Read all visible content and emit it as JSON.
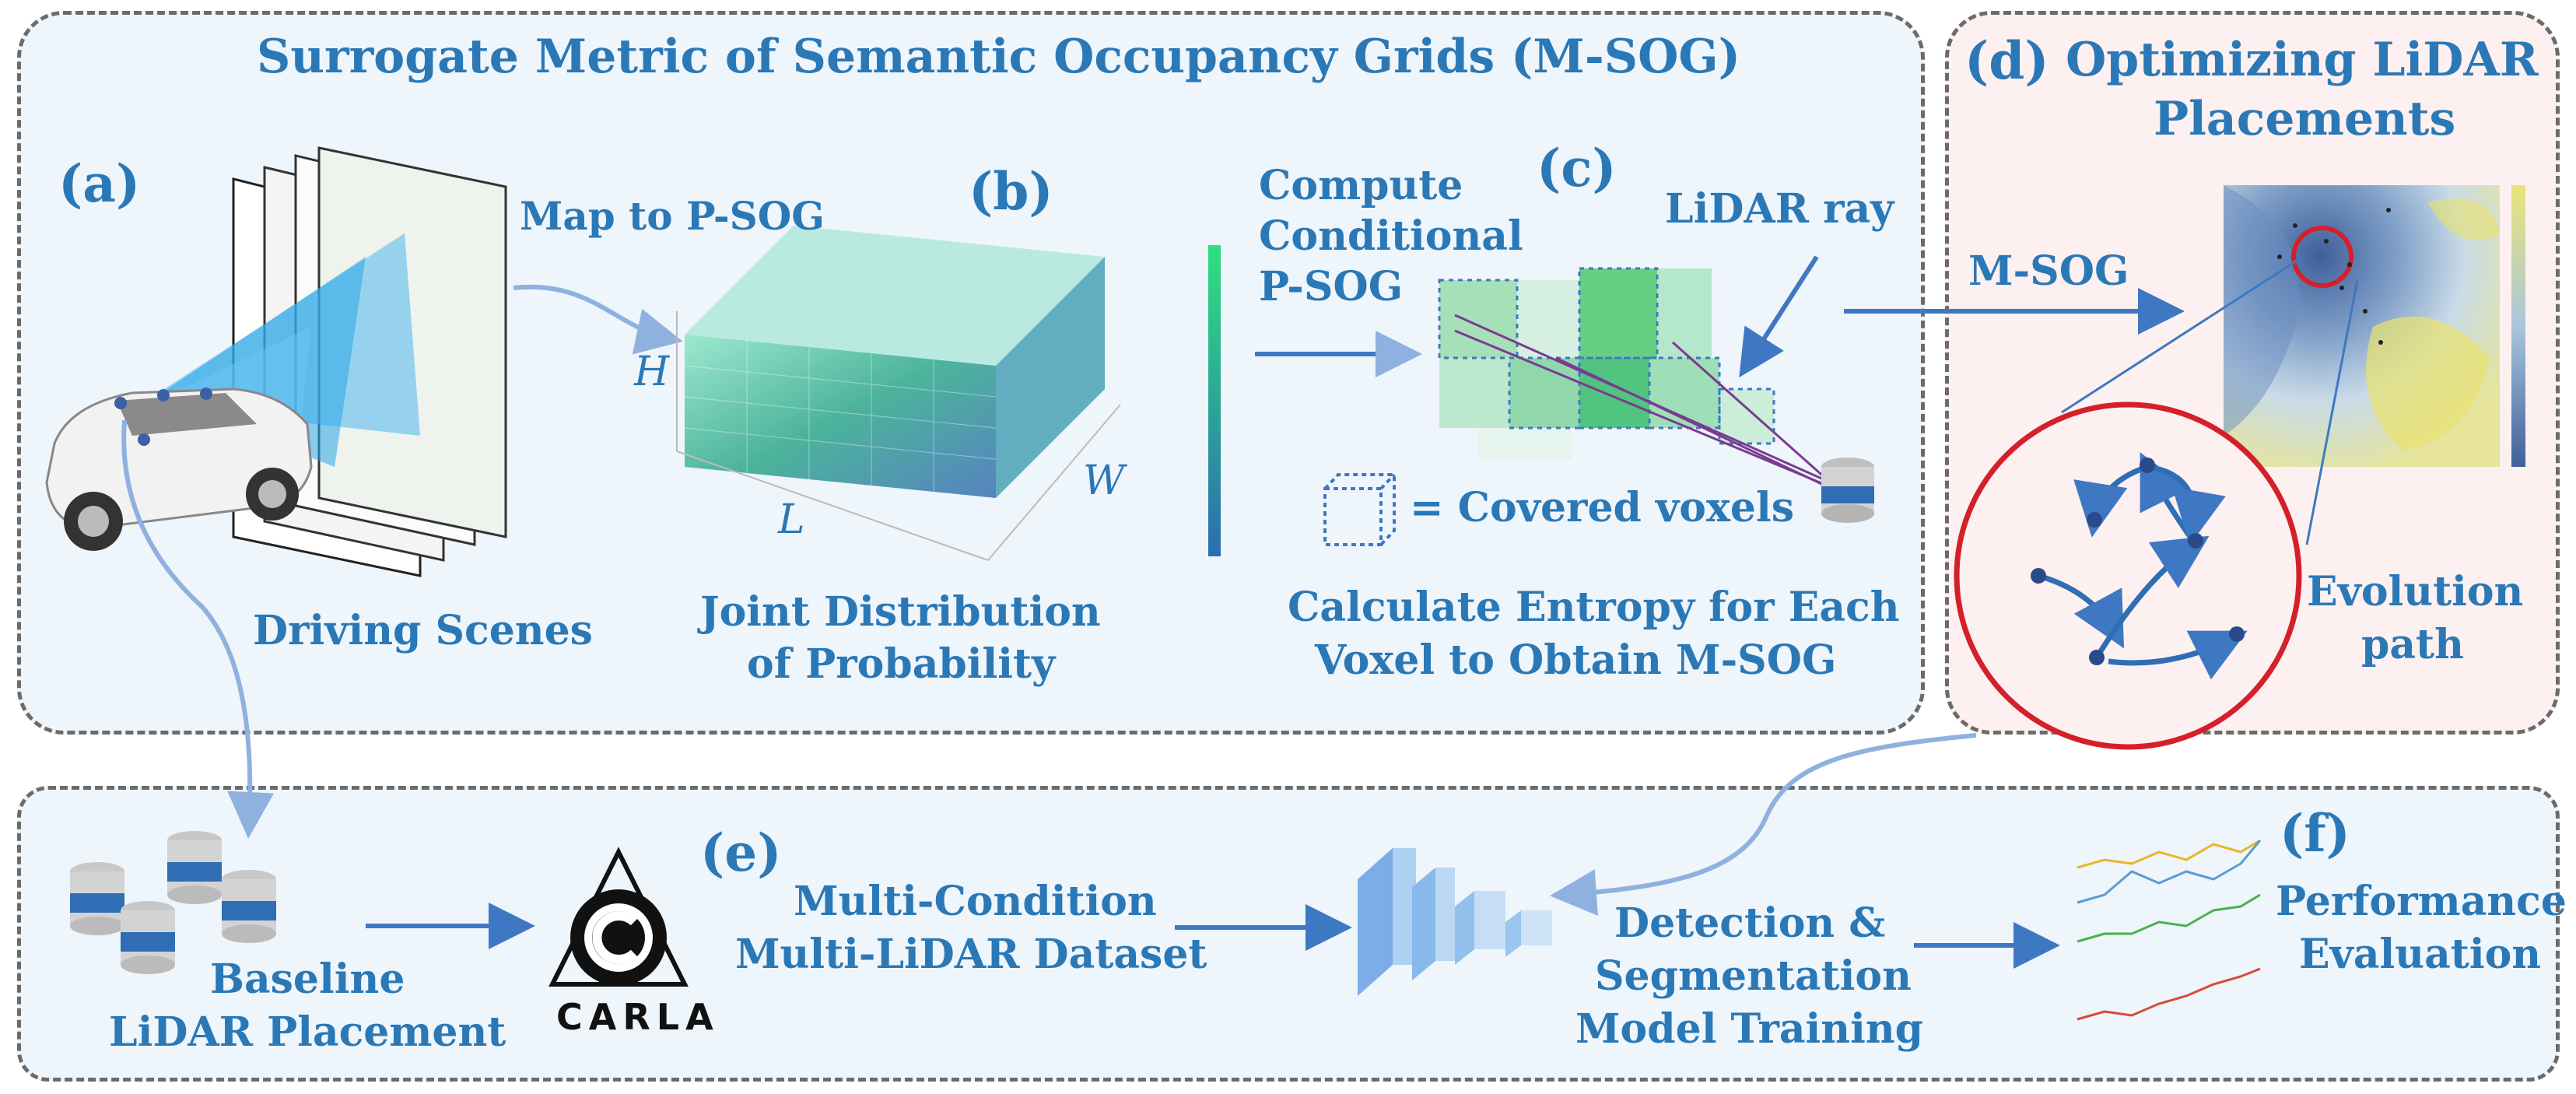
{
  "title": "Surrogate Metric of Semantic Occupancy Grids (M-SOG)",
  "panel_a": {
    "tag": "(a)",
    "caption": "Driving Scenes"
  },
  "arrow_map_label": "Map to P-SOG",
  "panel_b": {
    "tag": "(b)",
    "caption_line1": "Joint Distribution",
    "caption_line2": "of Probability",
    "axis_h": "H",
    "axis_l": "L",
    "axis_w": "W"
  },
  "panel_c": {
    "tag": "(c)",
    "compute_line1": "Compute",
    "compute_line2": "Conditional",
    "compute_line3": "P-SOG",
    "ray_label": "LiDAR ray",
    "legend_text": "= Covered voxels",
    "caption_line1": "Calculate Entropy for Each",
    "caption_line2": "Voxel to Obtain M-SOG"
  },
  "arrow_msog_label": "M-SOG",
  "panel_d": {
    "tag": "(d)",
    "title_line1": "Optimizing LiDAR",
    "title_line2": "Placements",
    "path_line1": "Evolution",
    "path_line2": "path"
  },
  "bottom": {
    "baseline_line1": "Baseline",
    "baseline_line2": "LiDAR Placement",
    "carla_logo": "CARLA",
    "tag_e": "(e)",
    "dataset_line1": "Multi-Condition",
    "dataset_line2": "Multi-LiDAR Dataset",
    "training_line1": "Detection &",
    "training_line2": "Segmentation",
    "training_line3": "Model Training",
    "tag_f": "(f)",
    "perf_line1": "Performance",
    "perf_line2": "Evaluation"
  },
  "colors": {
    "accent": "#2b78b6",
    "arrow": "#4a7fc1",
    "panel_fill": "#eef5fb",
    "panel_d_fill": "#fdf0f0",
    "circle_red": "#d4202a"
  }
}
